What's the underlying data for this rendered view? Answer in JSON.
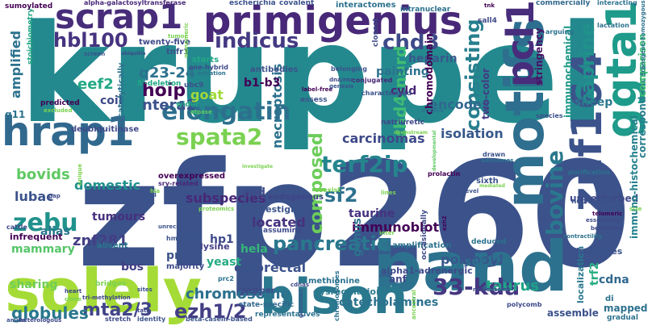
{
  "words": [
    {
      "text": "kruppel",
      "color": "#23898e"
    },
    {
      "text": "zfp260",
      "color": "#3b528b"
    },
    {
      "text": "band",
      "color": "#2c728e"
    },
    {
      "text": "bison",
      "color": "#2a788e"
    },
    {
      "text": "solely",
      "color": "#a5db36"
    },
    {
      "text": "primigenius",
      "color": "#482878"
    },
    {
      "text": "scrap1",
      "color": "#472c7a"
    },
    {
      "text": "motifs",
      "color": "#2e6e8e"
    },
    {
      "text": "znf164",
      "color": "#3b528b"
    },
    {
      "text": "ggta1",
      "color": "#1e9b8a"
    },
    {
      "text": "hrap1",
      "color": "#31688e"
    },
    {
      "text": "pcl1",
      "color": "#472d7b"
    },
    {
      "text": "elongatin",
      "color": "#2d708e"
    },
    {
      "text": "terf2ip",
      "color": "#25858e"
    },
    {
      "text": "spata2",
      "color": "#7ad151"
    },
    {
      "text": "bovine",
      "color": "#2a788e"
    },
    {
      "text": "33-kda",
      "color": "#453781"
    },
    {
      "text": "pancreatic",
      "color": "#2a788e"
    },
    {
      "text": "ezh1/2",
      "color": "#433e85"
    },
    {
      "text": "mta2/3",
      "color": "#414487"
    },
    {
      "text": "zebu",
      "color": "#20928c"
    },
    {
      "text": "sf2",
      "color": "#2c718e"
    },
    {
      "text": "indicus",
      "color": "#443a83"
    },
    {
      "text": "chd3",
      "color": "#3e4a89"
    },
    {
      "text": "hbl100",
      "color": "#46337f"
    },
    {
      "text": "consisting",
      "color": "#277f8e"
    },
    {
      "text": "caprine",
      "color": "#21918c"
    },
    {
      "text": "hoip",
      "color": "#440154"
    },
    {
      "text": "q23-24",
      "color": "#2c728e"
    },
    {
      "text": "ntera2",
      "color": "#3b528b"
    },
    {
      "text": "eef2",
      "color": "#22a884"
    },
    {
      "text": "bovids",
      "color": "#5ec962"
    },
    {
      "text": "composed",
      "color": "#6ccd5a"
    },
    {
      "text": "chd4-nurd",
      "color": "#3fbc73"
    },
    {
      "text": "globules",
      "color": "#2a788e"
    },
    {
      "text": "taurus",
      "color": "#20a386"
    },
    {
      "text": "znf281",
      "color": "#433e85"
    },
    {
      "text": "lubac",
      "color": "#3b528b"
    },
    {
      "text": "chromosome",
      "color": "#2c718e"
    },
    {
      "text": "carcinomas",
      "color": "#3e4989"
    },
    {
      "text": "immunoblot",
      "color": "#440154"
    },
    {
      "text": "polypoid",
      "color": "#39568c"
    },
    {
      "text": "colorectal",
      "color": "#3b528b"
    },
    {
      "text": "isolation",
      "color": "#38598c"
    },
    {
      "text": "encodes",
      "color": "#31688e"
    },
    {
      "text": "goat",
      "color": "#a0da39"
    },
    {
      "text": "domestic",
      "color": "#21918c"
    },
    {
      "text": "subspecies",
      "color": "#482878"
    },
    {
      "text": "located",
      "color": "#46327e"
    },
    {
      "text": "necroptosis",
      "color": "#2c728e"
    },
    {
      "text": "taurine",
      "color": "#46337f"
    },
    {
      "text": "heparin",
      "color": "#38588c"
    },
    {
      "text": "painting",
      "color": "#2c718e"
    },
    {
      "text": "amplified",
      "color": "#2c728e"
    },
    {
      "text": "alias",
      "color": "#2a768e"
    },
    {
      "text": "mammary",
      "color": "#54c568"
    },
    {
      "text": "tumours",
      "color": "#46307e"
    },
    {
      "text": "sharing",
      "color": "#6ece58"
    },
    {
      "text": "bos",
      "color": "#433e85"
    },
    {
      "text": "hp1",
      "color": "#3e4a89"
    },
    {
      "text": "yeast",
      "color": "#25ab82"
    },
    {
      "text": "hela",
      "color": "#35b779"
    },
    {
      "text": "sheep",
      "color": "#2a788e"
    },
    {
      "text": "cdna",
      "color": "#31688e"
    },
    {
      "text": "mapped",
      "color": "#2c718e"
    },
    {
      "text": "trf2",
      "color": "#27ad81"
    },
    {
      "text": "suz12",
      "color": "#2d708e"
    },
    {
      "text": "genus",
      "color": "#2c728e"
    },
    {
      "text": "prlr",
      "color": "#3b528b"
    },
    {
      "text": "cyld",
      "color": "#482475"
    },
    {
      "text": "eed",
      "color": "#3e4a89"
    },
    {
      "text": "b1-b3",
      "color": "#440154"
    },
    {
      "text": "coil",
      "color": "#3e4a89"
    },
    {
      "text": "catecholamines",
      "color": "#2c728e"
    },
    {
      "text": "unperturbed",
      "color": "#3e4a89"
    },
    {
      "text": "stringency",
      "color": "#471365"
    },
    {
      "text": "immunochemical",
      "color": "#1f9a8a"
    },
    {
      "text": "immuno-histochemical",
      "color": "#26828e"
    },
    {
      "text": "correspondences",
      "color": "#277f8e"
    },
    {
      "text": "comparison",
      "color": "#3fbc73"
    },
    {
      "text": "two-color",
      "color": "#443a83"
    },
    {
      "text": "chromodomain",
      "color": "#440154"
    },
    {
      "text": "anf",
      "color": "#3e4989"
    },
    {
      "text": "localization",
      "color": "#2a788e"
    },
    {
      "text": "helicases",
      "color": "#3b528b"
    },
    {
      "text": "amplification",
      "color": "#2c728e"
    },
    {
      "text": "alpha1-adrenergic",
      "color": "#3e4989"
    },
    {
      "text": "vestigial",
      "color": "#3b528b"
    },
    {
      "text": "lysine",
      "color": "#433e85"
    },
    {
      "text": "infrequent",
      "color": "#440154"
    },
    {
      "text": "absent",
      "color": "#2a788e"
    },
    {
      "text": "majority",
      "color": "#3e4989"
    },
    {
      "text": "endogenous",
      "color": "#414487"
    },
    {
      "text": "dysregulation",
      "color": "#2a788e"
    },
    {
      "text": "methionine",
      "color": "#2c728e"
    },
    {
      "text": "partner",
      "color": "#3e4989"
    },
    {
      "text": "state-specific",
      "color": "#31688e"
    },
    {
      "text": "representatives",
      "color": "#2c728e"
    },
    {
      "text": "assemble",
      "color": "#3b528b"
    },
    {
      "text": "di",
      "color": "#2c728e"
    },
    {
      "text": "gradual",
      "color": "#2c728e"
    },
    {
      "text": "overexpressed",
      "color": "#440154"
    },
    {
      "text": "sry-related",
      "color": "#482878"
    },
    {
      "text": "deubiquitinase",
      "color": "#3e4989"
    },
    {
      "text": "antibodies",
      "color": "#3b528b"
    },
    {
      "text": "belonging",
      "color": "#3b528b"
    },
    {
      "text": "conjugated",
      "color": "#482878"
    },
    {
      "text": "one-hybrid",
      "color": "#3e4989"
    },
    {
      "text": "initiation",
      "color": "#2c728e"
    },
    {
      "text": "starts",
      "color": "#22a884"
    },
    {
      "text": "tnfr1",
      "color": "#3b528b"
    },
    {
      "text": "twenty-five",
      "color": "#3e4989"
    },
    {
      "text": "ubc9",
      "color": "#3b528b"
    },
    {
      "text": "wider",
      "color": "#22a884"
    },
    {
      "text": "atpase",
      "color": "#5ec962"
    },
    {
      "text": "pups",
      "color": "#2c728e"
    },
    {
      "text": "catalytically",
      "color": "#2c728e"
    },
    {
      "text": "predicted",
      "color": "#440154"
    },
    {
      "text": "q11",
      "color": "#2c728e"
    },
    {
      "text": "5'-deletion",
      "color": "#22a884"
    },
    {
      "text": "excluded",
      "color": "#7ad151"
    },
    {
      "text": "stoichiometry",
      "color": "#22a884"
    },
    {
      "text": "sumoylated",
      "color": "#440154"
    },
    {
      "text": "alpha-galactosyltransferase",
      "color": "#482878"
    },
    {
      "text": "escherichia",
      "color": "#3b528b"
    },
    {
      "text": "covalent",
      "color": "#3b528b"
    },
    {
      "text": "interactomes",
      "color": "#2c728e"
    },
    {
      "text": "intranuclear",
      "color": "#2c728e"
    },
    {
      "text": "commercially",
      "color": "#31688e"
    },
    {
      "text": "interacting",
      "color": "#2c728e"
    },
    {
      "text": "lactation",
      "color": "#2c728e"
    },
    {
      "text": "transgene-homozygous",
      "color": "#2c728e"
    },
    {
      "text": "arguing",
      "color": "#2c728e"
    },
    {
      "text": "sall4",
      "color": "#3e4989"
    },
    {
      "text": "tnk",
      "color": "#440154"
    },
    {
      "text": "closest",
      "color": "#3e4989"
    },
    {
      "text": "characterised",
      "color": "#3b528b"
    },
    {
      "text": "assess",
      "color": "#3b528b"
    },
    {
      "text": "label-free",
      "color": "#440154"
    },
    {
      "text": "dna/rna",
      "color": "#3e4989"
    },
    {
      "text": "genesis",
      "color": "#3b528b"
    },
    {
      "text": "stroma",
      "color": "#2c728e"
    },
    {
      "text": "species",
      "color": "#3b528b"
    },
    {
      "text": "natriuretic",
      "color": "#3e4989"
    },
    {
      "text": "downstream",
      "color": "#7ad151"
    },
    {
      "text": "drawn",
      "color": "#3b528b"
    },
    {
      "text": "adenomas",
      "color": "#2c728e"
    },
    {
      "text": "purification",
      "color": "#2c728e"
    },
    {
      "text": "noticeable",
      "color": "#3b528b"
    },
    {
      "text": "telomeric",
      "color": "#440154"
    },
    {
      "text": "essentially",
      "color": "#3e4989"
    },
    {
      "text": "behaviour",
      "color": "#3e4989"
    },
    {
      "text": "contractility",
      "color": "#2c728e"
    },
    {
      "text": "sixth",
      "color": "#3b528b"
    },
    {
      "text": "prolactin",
      "color": "#440154"
    },
    {
      "text": "high-level",
      "color": "#3b528b"
    },
    {
      "text": "deduced",
      "color": "#2c728e"
    },
    {
      "text": "ezh2",
      "color": "#440154"
    },
    {
      "text": "occasionally",
      "color": "#3e4989"
    },
    {
      "text": "residues",
      "color": "#3b528b"
    },
    {
      "text": "chd",
      "color": "#3b528b"
    },
    {
      "text": "lines",
      "color": "#7ad151"
    },
    {
      "text": "coexist",
      "color": "#7ad151"
    },
    {
      "text": "assuming",
      "color": "#3e4989"
    },
    {
      "text": "hmg-box",
      "color": "#3b528b"
    },
    {
      "text": "prc2",
      "color": "#2c728e"
    },
    {
      "text": "unrecognized",
      "color": "#3b528b"
    },
    {
      "text": "bridges",
      "color": "#7ad151"
    },
    {
      "text": "sites",
      "color": "#3b528b"
    },
    {
      "text": "tri-methylation",
      "color": "#3e4989"
    },
    {
      "text": "tata",
      "color": "#3e4989"
    },
    {
      "text": "identity",
      "color": "#3b528b"
    },
    {
      "text": "stretch",
      "color": "#3e4989"
    },
    {
      "text": "beta-casein-based",
      "color": "#3b528b"
    },
    {
      "text": "heterologous",
      "color": "#3e4989"
    },
    {
      "text": "amino",
      "color": "#3b528b"
    },
    {
      "text": "clone",
      "color": "#7ad151"
    },
    {
      "text": "heart",
      "color": "#3e4989"
    },
    {
      "text": "cattle",
      "color": "#3e4989"
    },
    {
      "text": "acini",
      "color": "#3b528b"
    },
    {
      "text": "gap",
      "color": "#3e4989"
    },
    {
      "text": "unique",
      "color": "#7ad151"
    },
    {
      "text": "chromosomes",
      "color": "#2c728e"
    },
    {
      "text": "nucleosome",
      "color": "#3e4989"
    },
    {
      "text": "cdnas",
      "color": "#3e4989"
    },
    {
      "text": "ancestral",
      "color": "#7ad151"
    },
    {
      "text": "polycomb",
      "color": "#3e4989"
    },
    {
      "text": "developmental",
      "color": "#5ec962"
    },
    {
      "text": "size",
      "color": "#7ad151"
    },
    {
      "text": "tumor",
      "color": "#7ad151"
    },
    {
      "text": "monomeric",
      "color": "#7ad151"
    },
    {
      "text": "screen",
      "color": "#3b528b"
    },
    {
      "text": "proteomics",
      "color": "#7ad151"
    },
    {
      "text": "investigate",
      "color": "#7ad151"
    },
    {
      "text": "genomes",
      "color": "#3b528b"
    },
    {
      "text": "inter",
      "color": "#7ad151"
    },
    {
      "text": "ubiquitin",
      "color": "#3e4989"
    },
    {
      "text": "mediated",
      "color": "#7ad151"
    },
    {
      "text": "hla",
      "color": "#7ad151"
    }
  ]
}
